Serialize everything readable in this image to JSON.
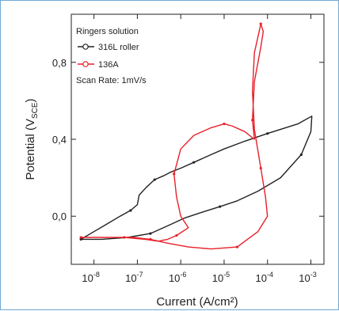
{
  "chart_data": {
    "type": "line",
    "xlabel": "Current (A/cm²)",
    "ylabel": "Potential (V",
    "ylabel_sub": "SCE",
    "ylabel_close": ")",
    "x_scale": "log",
    "xlim": [
      3e-09,
      0.002
    ],
    "ylim": [
      -0.25,
      1.05
    ],
    "x_ticks": [
      1e-08,
      1e-07,
      1e-06,
      1e-05,
      0.0001,
      0.001
    ],
    "x_tick_labels": [
      {
        "base": "10",
        "exp": "-8"
      },
      {
        "base": "10",
        "exp": "-7"
      },
      {
        "base": "10",
        "exp": "-6"
      },
      {
        "base": "10",
        "exp": "-5"
      },
      {
        "base": "10",
        "exp": "-4"
      },
      {
        "base": "10",
        "exp": "-3"
      }
    ],
    "y_ticks": [
      0.0,
      0.4,
      0.8
    ],
    "y_tick_labels": [
      "0,0",
      "0,4",
      "0,8"
    ],
    "legend_title": "Ringers solution",
    "annotation": "Scan Rate: 1mV/s",
    "colors": {
      "316L": "#222222",
      "136A": "#e8202a",
      "frame": "#6fa9d6"
    },
    "series": [
      {
        "name": "316L roller",
        "color": "#222222",
        "x": [
          5e-09,
          1e-08,
          2e-08,
          4e-08,
          7e-08,
          1e-07,
          1.1e-07,
          1.6e-07,
          2.5e-07,
          4e-07,
          6e-07,
          1e-06,
          2e-06,
          5e-06,
          1e-05,
          3e-05,
          0.0001,
          0.0005,
          0.00105,
          0.001,
          0.0006,
          0.0002,
          6e-05,
          2e-05,
          8e-06,
          3e-06,
          1.2e-06,
          5e-07,
          2e-07,
          6e-08,
          1.5e-08,
          5e-09
        ],
        "y": [
          -0.12,
          -0.08,
          -0.04,
          0.0,
          0.03,
          0.06,
          0.11,
          0.15,
          0.19,
          0.21,
          0.23,
          0.25,
          0.28,
          0.32,
          0.35,
          0.39,
          0.43,
          0.48,
          0.52,
          0.44,
          0.32,
          0.2,
          0.13,
          0.08,
          0.05,
          0.02,
          -0.01,
          -0.05,
          -0.09,
          -0.11,
          -0.12,
          -0.12
        ]
      },
      {
        "name": "136A",
        "color": "#e8202a",
        "x": [
          5e-09,
          1e-08,
          3e-08,
          8e-08,
          2e-07,
          5e-07,
          1.5e-06,
          5e-06,
          2e-05,
          6e-05,
          0.0001,
          9e-05,
          7e-05,
          5e-05,
          4.5e-05,
          5e-05,
          7e-05,
          8e-05,
          7e-05,
          5e-05,
          4.5e-05,
          5e-05,
          3e-05,
          1.5e-05,
          1e-05,
          5e-06,
          2e-06,
          1e-06,
          7e-07,
          8e-07,
          1e-06,
          1.5e-06,
          8e-07,
          5e-07,
          3e-07,
          1.5e-07,
          5e-08,
          1e-08,
          5e-09
        ],
        "y": [
          -0.11,
          -0.11,
          -0.11,
          -0.11,
          -0.12,
          -0.14,
          -0.16,
          -0.17,
          -0.16,
          -0.08,
          0.0,
          0.1,
          0.25,
          0.45,
          0.65,
          0.85,
          1.0,
          0.96,
          0.88,
          0.7,
          0.5,
          0.4,
          0.44,
          0.47,
          0.48,
          0.46,
          0.42,
          0.35,
          0.22,
          0.1,
          0.0,
          -0.06,
          -0.1,
          -0.12,
          -0.13,
          -0.12,
          -0.11,
          -0.11,
          -0.11
        ]
      }
    ]
  }
}
